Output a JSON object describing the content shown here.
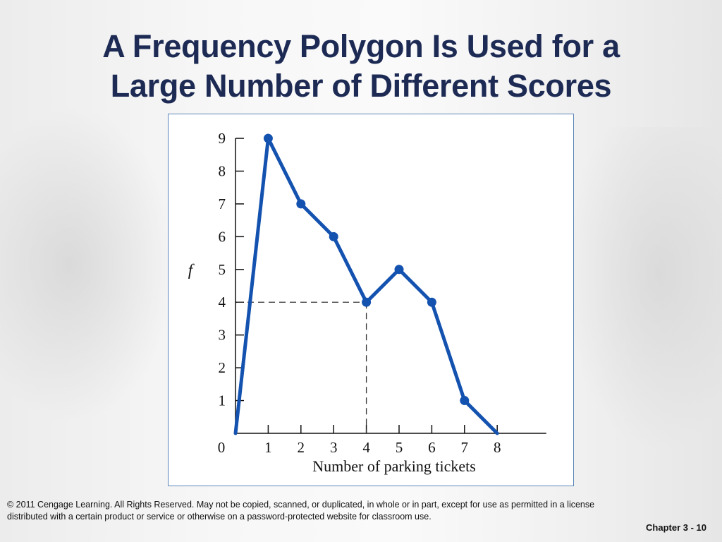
{
  "slide": {
    "title_line1": "A Frequency Polygon Is Used for a",
    "title_line2": "Large Number of Different Scores",
    "footer_line1": "© 2011 Cengage Learning. All Rights Reserved. May not be copied, scanned, or duplicated, in whole or in part, except for use as permitted in a license",
    "footer_line2": "distributed with a certain product or service or otherwise on a password-protected website for classroom use.",
    "chapter": "Chapter 3 - 10"
  },
  "chart_data": {
    "type": "line",
    "title": "",
    "xlabel": "Number of parking tickets",
    "ylabel": "f",
    "x_ticks": [
      0,
      1,
      2,
      3,
      4,
      5,
      6,
      7,
      8
    ],
    "y_ticks": [
      1,
      2,
      3,
      4,
      5,
      6,
      7,
      8,
      9
    ],
    "xlim": [
      0,
      9.5
    ],
    "ylim": [
      0,
      9
    ],
    "series": [
      {
        "x": [
          0,
          1,
          2,
          3,
          4,
          5,
          6,
          7,
          8
        ],
        "y": [
          0,
          9,
          7,
          6,
          4,
          5,
          4,
          1,
          0
        ],
        "markers": [
          false,
          true,
          true,
          true,
          true,
          true,
          true,
          true,
          false
        ]
      }
    ],
    "reference_point": {
      "x": 4,
      "y": 4
    },
    "line_color": "#1452b0",
    "grid": false,
    "legend": "none"
  }
}
